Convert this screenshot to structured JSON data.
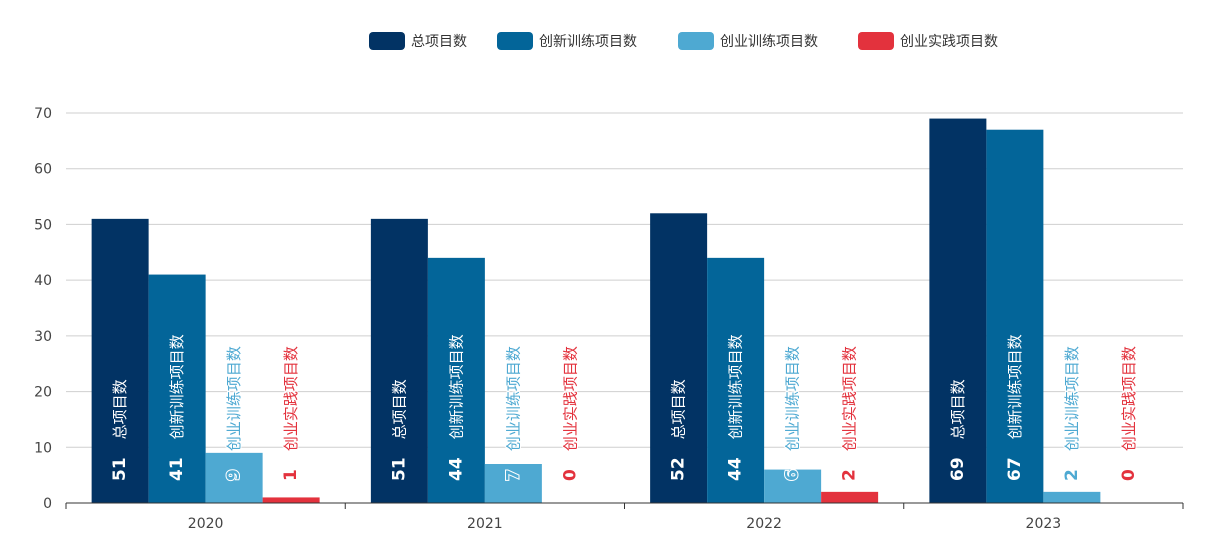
{
  "chart_data": {
    "type": "bar",
    "categories": [
      "2020",
      "2021",
      "2022",
      "2023"
    ],
    "series": [
      {
        "name": "总项目数",
        "values": [
          51,
          51,
          52,
          69
        ],
        "color": "#023364"
      },
      {
        "name": "创新训练项目数",
        "values": [
          41,
          44,
          44,
          67
        ],
        "color": "#036599"
      },
      {
        "name": "创业训练项目数",
        "values": [
          9,
          7,
          6,
          2
        ],
        "color": "#4ea9d2"
      },
      {
        "name": "创业实践项目数",
        "values": [
          1,
          0,
          2,
          0
        ],
        "color": "#e3323d"
      }
    ],
    "ylim": [
      0,
      70
    ],
    "yticks": [
      0,
      10,
      20,
      30,
      40,
      50,
      60,
      70
    ],
    "grid": true,
    "legend_position": "top-center",
    "title": "",
    "xlabel": "",
    "ylabel": ""
  }
}
